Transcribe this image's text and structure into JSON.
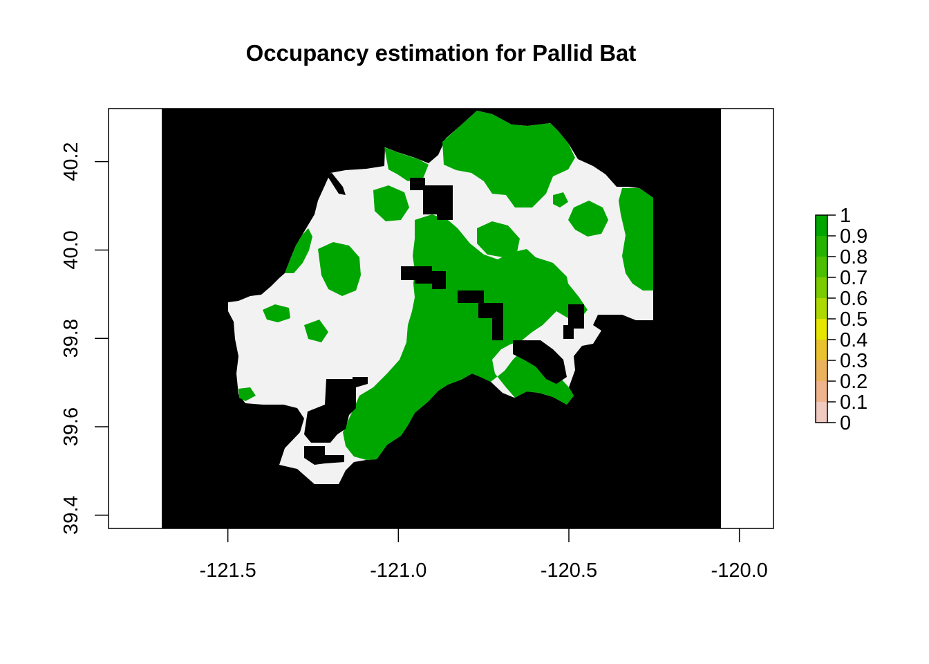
{
  "title": "Occupancy estimation for Pallid Bat",
  "map": {
    "x_ticks": [
      "-121.5",
      "-121.0",
      "-120.5",
      "-120.0"
    ],
    "y_ticks": [
      "39.4",
      "39.6",
      "39.8",
      "40.0",
      "40.2"
    ],
    "xlim": [
      -121.85,
      -119.9
    ],
    "ylim": [
      39.37,
      40.32
    ],
    "raster_extent_lon": [
      -121.69,
      -120.04
    ],
    "background_color": "#000000",
    "outside_color": "#ffffff"
  },
  "legend": {
    "labels": [
      "1",
      "0.9",
      "0.8",
      "0.7",
      "0.6",
      "0.5",
      "0.4",
      "0.3",
      "0.2",
      "0.1",
      "0"
    ],
    "breaks": [
      1,
      0.9,
      0.8,
      0.7,
      0.6,
      0.5,
      0.4,
      0.3,
      0.2,
      0.1,
      0
    ],
    "colors": [
      "#00A600",
      "#24B300",
      "#4CBF00",
      "#7ACC00",
      "#ADD900",
      "#E6E600",
      "#E8C32E",
      "#EBB25E",
      "#EDB48E",
      "#F0C9C0",
      "#F2F2F2"
    ]
  },
  "colors": {
    "low": "#F2F2F2",
    "high": "#00A600",
    "no_data": "#000000"
  }
}
